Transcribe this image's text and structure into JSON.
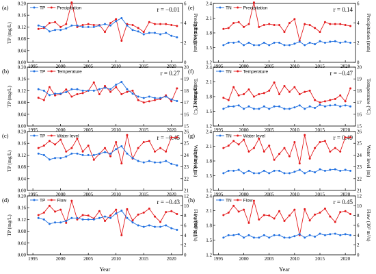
{
  "chart_data": [
    {
      "panel": "(a)",
      "r_label": "r = −0.01",
      "type": "line",
      "left": {
        "name": "TP",
        "ylabel": "TP (mg/L)",
        "ylim": [
          0.0,
          0.2
        ],
        "ticks": [
          "0.00",
          "0.04",
          "0.08",
          "0.12",
          "0.16",
          "0.20"
        ]
      },
      "right": {
        "name": "Precipitation",
        "ylabel": "Precipitation (mm)",
        "ylim": [
          0,
          6
        ],
        "ticks": [
          "0",
          "2",
          "4",
          "6"
        ]
      },
      "x": [
        1996,
        1997,
        1998,
        1999,
        2000,
        2001,
        2002,
        2003,
        2004,
        2005,
        2006,
        2007,
        2008,
        2009,
        2010,
        2011,
        2012,
        2013,
        2014,
        2015,
        2016,
        2017,
        2018,
        2019,
        2020,
        2021
      ],
      "left_values": [
        0.125,
        0.12,
        0.105,
        0.11,
        0.11,
        0.115,
        0.125,
        0.125,
        0.12,
        0.12,
        0.12,
        0.125,
        0.13,
        0.125,
        0.14,
        0.15,
        0.125,
        0.11,
        0.105,
        0.095,
        0.1,
        0.1,
        0.095,
        0.1,
        0.09,
        0.085
      ],
      "right_values": [
        3.4,
        3.5,
        4.0,
        4.1,
        3.6,
        3.9,
        6.1,
        3.6,
        3.8,
        3.9,
        3.8,
        3.8,
        3.1,
        4.0,
        4.4,
        2.2,
        3.9,
        3.8,
        3.5,
        3.1,
        4.1,
        3.9,
        3.9,
        3.9,
        3.8,
        3.7
      ],
      "xticks": [
        1995,
        2000,
        2005,
        2010,
        2015,
        2020
      ]
    },
    {
      "panel": "(b)",
      "r_label": "r = 0.27",
      "type": "line",
      "left": {
        "name": "TP",
        "ylabel": "TP (mg/L)",
        "ylim": [
          0.0,
          0.2
        ],
        "ticks": [
          "0.00",
          "0.04",
          "0.08",
          "0.12",
          "0.16",
          "0.20"
        ]
      },
      "right": {
        "name": "Temperature",
        "ylabel": "Temperature (°C)",
        "ylim": [
          15,
          20
        ],
        "ticks": [
          "15",
          "16",
          "17",
          "18",
          "19",
          "20"
        ]
      },
      "x": [
        1996,
        1997,
        1998,
        1999,
        2000,
        2001,
        2002,
        2003,
        2004,
        2005,
        2006,
        2007,
        2008,
        2009,
        2010,
        2011,
        2012,
        2013,
        2014,
        2015,
        2016,
        2017,
        2018,
        2019,
        2020,
        2021
      ],
      "left_values": [
        0.125,
        0.12,
        0.105,
        0.11,
        0.11,
        0.115,
        0.125,
        0.125,
        0.12,
        0.12,
        0.12,
        0.125,
        0.13,
        0.125,
        0.14,
        0.15,
        0.125,
        0.11,
        0.1,
        0.095,
        0.1,
        0.095,
        0.095,
        0.1,
        0.09,
        0.085
      ],
      "right_values": [
        17.4,
        17.2,
        18.3,
        17.6,
        17.7,
        18.1,
        17.5,
        17.7,
        17.8,
        18.0,
        18.7,
        17.7,
        18.4,
        17.9,
        18.3,
        17.7,
        17.9,
        18.0,
        17.2,
        17.0,
        17.1,
        17.2,
        17.3,
        17.6,
        17.1,
        18.2
      ],
      "xticks": [
        1995,
        2000,
        2005,
        2010,
        2015,
        2020
      ]
    },
    {
      "panel": "(c)",
      "r_label": "r = −0.45",
      "type": "line",
      "left": {
        "name": "TP",
        "ylabel": "TP (mg/L)",
        "ylim": [
          0.0,
          0.2
        ],
        "ticks": [
          "0.00",
          "0.04",
          "0.08",
          "0.12",
          "0.16",
          "0.20"
        ]
      },
      "right": {
        "name": "Water level",
        "ylabel": "Water level (m)",
        "ylim": [
          21,
          26
        ],
        "ticks": [
          "21",
          "22",
          "23",
          "24",
          "25",
          "26"
        ]
      },
      "x": [
        1996,
        1997,
        1998,
        1999,
        2000,
        2001,
        2002,
        2003,
        2004,
        2005,
        2006,
        2007,
        2008,
        2009,
        2010,
        2011,
        2012,
        2013,
        2014,
        2015,
        2016,
        2017,
        2018,
        2019,
        2020,
        2021
      ],
      "left_values": [
        0.125,
        0.12,
        0.105,
        0.11,
        0.11,
        0.115,
        0.125,
        0.125,
        0.12,
        0.12,
        0.12,
        0.125,
        0.13,
        0.125,
        0.14,
        0.15,
        0.125,
        0.11,
        0.1,
        0.095,
        0.1,
        0.095,
        0.095,
        0.1,
        0.09,
        0.085
      ],
      "right_values": [
        24.6,
        24.8,
        25.2,
        24.9,
        25.3,
        24.3,
        24.6,
        25.4,
        24.3,
        24.8,
        23.6,
        24.1,
        24.6,
        23.9,
        25.1,
        23.3,
        25.7,
        23.7,
        24.6,
        25.1,
        25.2,
        24.3,
        24.6,
        24.3,
        25.5,
        25.5
      ],
      "xticks": [
        1995,
        2000,
        2005,
        2010,
        2015,
        2020
      ]
    },
    {
      "panel": "(d)",
      "r_label": "r = −0.43",
      "type": "line",
      "left": {
        "name": "TP",
        "ylabel": "TP (mg/L)",
        "ylim": [
          0.0,
          0.2
        ],
        "ticks": [
          "0.00",
          "0.04",
          "0.08",
          "0.12",
          "0.16",
          "0.20"
        ]
      },
      "right": {
        "name": "Flow",
        "ylabel": "Flow (10³ m³/s)",
        "ylim": [
          0,
          12
        ],
        "ticks": [
          "0",
          "2",
          "4",
          "6",
          "8",
          "10",
          "12"
        ]
      },
      "x": [
        1996,
        1997,
        1998,
        1999,
        2000,
        2001,
        2002,
        2003,
        2004,
        2005,
        2006,
        2007,
        2008,
        2009,
        2010,
        2011,
        2012,
        2013,
        2014,
        2015,
        2016,
        2017,
        2018,
        2019,
        2020,
        2021
      ],
      "left_values": [
        0.125,
        0.12,
        0.105,
        0.11,
        0.11,
        0.115,
        0.125,
        0.125,
        0.12,
        0.12,
        0.12,
        0.125,
        0.13,
        0.125,
        0.14,
        0.15,
        0.125,
        0.11,
        0.1,
        0.095,
        0.1,
        0.095,
        0.095,
        0.1,
        0.09,
        0.085
      ],
      "right_values": [
        8.1,
        8.6,
        10.0,
        8.8,
        9.2,
        6.5,
        11.0,
        7.2,
        8.1,
        8.0,
        7.4,
        8.9,
        6.9,
        8.0,
        9.2,
        4.0,
        9.3,
        7.0,
        8.2,
        8.6,
        9.4,
        7.8,
        6.7,
        8.7,
        8.9,
        8.3
      ],
      "xticks": [
        1995,
        2000,
        2005,
        2010,
        2015,
        2020
      ]
    },
    {
      "panel": "(e)",
      "r_label": "r = 0.14",
      "type": "line",
      "left": {
        "name": "TN",
        "ylabel": "TN (mg/L)",
        "ylim": [
          1.2,
          2.4
        ],
        "ticks": [
          "1.2",
          "1.5",
          "1.8",
          "2.1",
          "2.4"
        ]
      },
      "right": {
        "name": "Precipitation",
        "ylabel": "Precipitation (mm)",
        "ylim": [
          0,
          6
        ],
        "ticks": [
          "0",
          "2",
          "4",
          "6"
        ]
      },
      "x": [
        1996,
        1997,
        1998,
        1999,
        2000,
        2001,
        2002,
        2003,
        2004,
        2005,
        2006,
        2007,
        2008,
        2009,
        2010,
        2011,
        2012,
        2013,
        2014,
        2015,
        2016,
        2017,
        2018,
        2019,
        2020,
        2021
      ],
      "left_values": [
        1.55,
        1.6,
        1.6,
        1.62,
        1.55,
        1.6,
        1.55,
        1.55,
        1.6,
        1.55,
        1.6,
        1.6,
        1.55,
        1.55,
        1.58,
        1.62,
        1.55,
        1.6,
        1.57,
        1.63,
        1.6,
        1.62,
        1.63,
        1.6,
        1.62,
        1.6
      ],
      "right_values": [
        3.4,
        3.5,
        4.0,
        4.1,
        3.6,
        3.9,
        6.1,
        3.6,
        3.8,
        3.9,
        3.8,
        3.8,
        3.1,
        4.0,
        4.4,
        2.2,
        3.9,
        3.8,
        3.5,
        3.1,
        4.1,
        3.9,
        3.9,
        3.9,
        3.8,
        3.7
      ],
      "xticks": [
        1995,
        2000,
        2005,
        2010,
        2015,
        2020
      ]
    },
    {
      "panel": "(f)",
      "r_label": "r = −0.47",
      "type": "line",
      "left": {
        "name": "TN",
        "ylabel": "TN (mg/L)",
        "ylim": [
          1.2,
          2.4
        ],
        "ticks": [
          "1.2",
          "1.5",
          "1.8",
          "2.1",
          "2.4"
        ]
      },
      "right": {
        "name": "Temperature",
        "ylabel": "Temperature (°C)",
        "ylim": [
          15,
          20
        ],
        "ticks": [
          "15",
          "16",
          "17",
          "18",
          "19",
          "20"
        ]
      },
      "x": [
        1996,
        1997,
        1998,
        1999,
        2000,
        2001,
        2002,
        2003,
        2004,
        2005,
        2006,
        2007,
        2008,
        2009,
        2010,
        2011,
        2012,
        2013,
        2014,
        2015,
        2016,
        2017,
        2018,
        2019,
        2020,
        2021
      ],
      "left_values": [
        1.55,
        1.6,
        1.6,
        1.62,
        1.55,
        1.6,
        1.55,
        1.55,
        1.6,
        1.55,
        1.6,
        1.6,
        1.55,
        1.55,
        1.58,
        1.62,
        1.55,
        1.6,
        1.57,
        1.63,
        1.6,
        1.62,
        1.63,
        1.6,
        1.62,
        1.6
      ],
      "right_values": [
        17.4,
        17.2,
        18.3,
        17.6,
        17.7,
        18.1,
        17.5,
        17.7,
        17.8,
        18.0,
        18.7,
        17.7,
        18.4,
        17.9,
        18.3,
        17.7,
        17.9,
        18.0,
        17.2,
        17.0,
        17.1,
        17.2,
        17.3,
        17.6,
        17.1,
        18.2
      ],
      "xticks": [
        1995,
        2000,
        2005,
        2010,
        2015,
        2020
      ]
    },
    {
      "panel": "(g)",
      "r_label": "r = 0.49",
      "type": "line",
      "left": {
        "name": "TN",
        "ylabel": "TN (mg/L)",
        "ylim": [
          1.2,
          2.4
        ],
        "ticks": [
          "1.2",
          "1.5",
          "1.8",
          "2.1",
          "2.4"
        ]
      },
      "right": {
        "name": "Water level",
        "ylabel": "Water level (m)",
        "ylim": [
          21,
          26
        ],
        "ticks": [
          "21",
          "22",
          "23",
          "24",
          "25",
          "26"
        ]
      },
      "x": [
        1996,
        1997,
        1998,
        1999,
        2000,
        2001,
        2002,
        2003,
        2004,
        2005,
        2006,
        2007,
        2008,
        2009,
        2010,
        2011,
        2012,
        2013,
        2014,
        2015,
        2016,
        2017,
        2018,
        2019,
        2020,
        2021
      ],
      "left_values": [
        1.55,
        1.6,
        1.6,
        1.62,
        1.55,
        1.6,
        1.55,
        1.55,
        1.6,
        1.55,
        1.6,
        1.6,
        1.55,
        1.55,
        1.58,
        1.62,
        1.55,
        1.6,
        1.57,
        1.63,
        1.6,
        1.62,
        1.63,
        1.6,
        1.62,
        1.6
      ],
      "right_values": [
        24.6,
        24.8,
        25.2,
        24.9,
        25.3,
        24.3,
        24.6,
        25.4,
        24.3,
        24.8,
        23.6,
        24.1,
        24.6,
        23.9,
        25.1,
        23.3,
        25.7,
        23.7,
        24.6,
        25.1,
        25.2,
        24.3,
        24.6,
        24.3,
        25.5,
        25.5
      ],
      "xticks": [
        1995,
        2000,
        2005,
        2010,
        2015,
        2020
      ]
    },
    {
      "panel": "(h)",
      "r_label": "r = 0.45",
      "type": "line",
      "left": {
        "name": "TN",
        "ylabel": "TN (mg/L)",
        "ylim": [
          1.2,
          2.4
        ],
        "ticks": [
          "1.2",
          "1.5",
          "1.8",
          "2.1",
          "2.4"
        ]
      },
      "right": {
        "name": "Flow",
        "ylabel": "Flow (10³ m³/s)",
        "ylim": [
          0,
          12
        ],
        "ticks": [
          "0",
          "2",
          "4",
          "6",
          "8",
          "10",
          "12"
        ]
      },
      "x": [
        1996,
        1997,
        1998,
        1999,
        2000,
        2001,
        2002,
        2003,
        2004,
        2005,
        2006,
        2007,
        2008,
        2009,
        2010,
        2011,
        2012,
        2013,
        2014,
        2015,
        2016,
        2017,
        2018,
        2019,
        2020,
        2021
      ],
      "left_values": [
        1.55,
        1.6,
        1.6,
        1.62,
        1.55,
        1.6,
        1.55,
        1.55,
        1.6,
        1.55,
        1.6,
        1.6,
        1.55,
        1.55,
        1.58,
        1.62,
        1.55,
        1.6,
        1.57,
        1.63,
        1.6,
        1.62,
        1.63,
        1.6,
        1.62,
        1.6
      ],
      "right_values": [
        8.1,
        8.6,
        10.0,
        8.8,
        9.2,
        6.5,
        11.0,
        7.2,
        8.1,
        8.0,
        7.4,
        8.9,
        6.9,
        8.0,
        9.2,
        4.0,
        9.3,
        7.0,
        8.2,
        8.6,
        9.4,
        7.8,
        6.7,
        8.7,
        8.9,
        8.3
      ],
      "xticks": [
        1995,
        2000,
        2005,
        2010,
        2015,
        2020
      ]
    }
  ],
  "figure": {
    "xlabel": "Year",
    "colors": {
      "left_series": "#1f6fe0",
      "right_series": "#e41a1c"
    }
  }
}
